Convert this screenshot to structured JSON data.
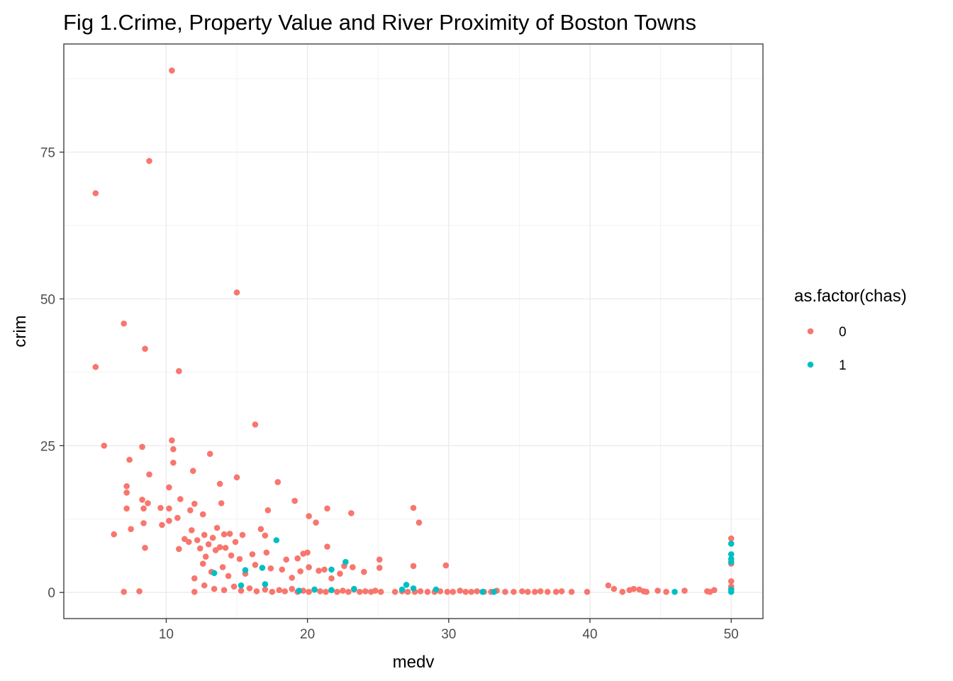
{
  "chart_data": {
    "type": "scatter",
    "title": "Fig 1.Crime, Property Value and River Proximity of Boston Towns",
    "xlabel": "medv",
    "ylabel": "crim",
    "xlim": [
      2.75,
      52.25
    ],
    "ylim": [
      -4.45,
      93.42
    ],
    "x_ticks": [
      10,
      20,
      30,
      40,
      50
    ],
    "y_ticks": [
      0,
      25,
      50,
      75
    ],
    "x_minor": [
      15,
      25,
      35,
      45
    ],
    "y_minor": [
      12.5,
      37.5,
      62.5,
      87.5
    ],
    "grid": true,
    "legend": {
      "title": "as.factor(chas)",
      "position": "right",
      "entries": [
        {
          "label": "0",
          "color": "#F8766D"
        },
        {
          "label": "1",
          "color": "#00BFC4"
        }
      ]
    },
    "series": [
      {
        "name": "0",
        "color": "#F8766D",
        "points": [
          [
            5.0,
            68.0
          ],
          [
            8.8,
            73.5
          ],
          [
            10.4,
            88.9
          ],
          [
            5.0,
            38.4
          ],
          [
            7.0,
            45.8
          ],
          [
            8.5,
            41.5
          ],
          [
            10.9,
            37.7
          ],
          [
            15.0,
            51.1
          ],
          [
            16.3,
            28.6
          ],
          [
            5.6,
            25.0
          ],
          [
            8.3,
            24.8
          ],
          [
            10.4,
            25.9
          ],
          [
            10.5,
            24.4
          ],
          [
            10.5,
            22.1
          ],
          [
            13.1,
            23.6
          ],
          [
            7.4,
            22.6
          ],
          [
            8.8,
            20.1
          ],
          [
            11.9,
            20.7
          ],
          [
            15.0,
            19.6
          ],
          [
            13.8,
            18.5
          ],
          [
            17.9,
            18.8
          ],
          [
            7.2,
            18.1
          ],
          [
            7.2,
            17.0
          ],
          [
            10.2,
            17.9
          ],
          [
            19.1,
            15.6
          ],
          [
            11.0,
            15.9
          ],
          [
            8.3,
            15.8
          ],
          [
            8.7,
            15.2
          ],
          [
            12.0,
            15.1
          ],
          [
            13.9,
            15.2
          ],
          [
            7.2,
            14.3
          ],
          [
            8.4,
            14.3
          ],
          [
            9.6,
            14.4
          ],
          [
            10.2,
            14.3
          ],
          [
            11.7,
            14.0
          ],
          [
            17.2,
            14.0
          ],
          [
            21.4,
            14.3
          ],
          [
            23.1,
            13.5
          ],
          [
            27.5,
            14.4
          ],
          [
            20.1,
            13.0
          ],
          [
            7.5,
            10.8
          ],
          [
            6.3,
            9.9
          ],
          [
            8.4,
            11.8
          ],
          [
            9.7,
            11.5
          ],
          [
            10.2,
            12.2
          ],
          [
            10.8,
            12.7
          ],
          [
            12.6,
            13.3
          ],
          [
            11.3,
            9.1
          ],
          [
            11.8,
            10.6
          ],
          [
            12.7,
            9.8
          ],
          [
            13.3,
            9.3
          ],
          [
            13.6,
            11.0
          ],
          [
            14.1,
            9.9
          ],
          [
            14.5,
            10.0
          ],
          [
            14.9,
            8.6
          ],
          [
            15.4,
            9.8
          ],
          [
            16.7,
            10.8
          ],
          [
            17.0,
            9.7
          ],
          [
            20.6,
            11.9
          ],
          [
            27.9,
            11.9
          ],
          [
            10.9,
            7.4
          ],
          [
            11.6,
            8.6
          ],
          [
            12.2,
            8.9
          ],
          [
            12.4,
            7.5
          ],
          [
            12.8,
            6.1
          ],
          [
            13.0,
            8.2
          ],
          [
            13.5,
            7.2
          ],
          [
            13.8,
            7.7
          ],
          [
            14.2,
            7.6
          ],
          [
            14.6,
            6.3
          ],
          [
            15.2,
            5.7
          ],
          [
            16.1,
            6.5
          ],
          [
            17.1,
            6.8
          ],
          [
            18.5,
            5.6
          ],
          [
            19.3,
            5.8
          ],
          [
            19.7,
            6.6
          ],
          [
            20.0,
            6.8
          ],
          [
            21.4,
            7.8
          ],
          [
            8.5,
            7.6
          ],
          [
            12.0,
            2.4
          ],
          [
            12.6,
            4.9
          ],
          [
            13.2,
            3.5
          ],
          [
            14.0,
            4.3
          ],
          [
            14.4,
            2.8
          ],
          [
            15.6,
            3.2
          ],
          [
            16.3,
            4.7
          ],
          [
            17.4,
            4.1
          ],
          [
            18.2,
            3.9
          ],
          [
            18.9,
            2.5
          ],
          [
            19.5,
            3.6
          ],
          [
            20.1,
            4.3
          ],
          [
            20.8,
            3.7
          ],
          [
            21.2,
            3.9
          ],
          [
            21.7,
            2.4
          ],
          [
            22.3,
            3.2
          ],
          [
            22.6,
            4.5
          ],
          [
            23.2,
            4.3
          ],
          [
            24.0,
            3.5
          ],
          [
            25.1,
            4.2
          ],
          [
            25.1,
            5.6
          ],
          [
            27.5,
            4.5
          ],
          [
            29.8,
            4.6
          ],
          [
            7.0,
            0.1
          ],
          [
            8.1,
            0.2
          ],
          [
            12.0,
            0.1
          ],
          [
            12.7,
            1.2
          ],
          [
            13.4,
            0.6
          ],
          [
            14.1,
            0.4
          ],
          [
            14.8,
            1.0
          ],
          [
            15.3,
            0.3
          ],
          [
            15.9,
            0.7
          ],
          [
            16.4,
            0.2
          ],
          [
            17.0,
            0.5
          ],
          [
            17.5,
            0.1
          ],
          [
            18.0,
            0.4
          ],
          [
            18.4,
            0.2
          ],
          [
            18.9,
            0.6
          ],
          [
            19.3,
            0.1
          ],
          [
            19.7,
            0.3
          ],
          [
            20.1,
            0.1
          ],
          [
            20.5,
            0.5
          ],
          [
            20.9,
            0.2
          ],
          [
            21.3,
            0.1
          ],
          [
            21.7,
            0.4
          ],
          [
            22.1,
            0.1
          ],
          [
            22.5,
            0.3
          ],
          [
            22.9,
            0.1
          ],
          [
            23.3,
            0.5
          ],
          [
            23.7,
            0.1
          ],
          [
            24.1,
            0.2
          ],
          [
            24.5,
            0.1
          ],
          [
            24.8,
            0.3
          ],
          [
            25.2,
            0.1
          ],
          [
            26.2,
            0.1
          ],
          [
            26.7,
            0.2
          ],
          [
            27.1,
            0.1
          ],
          [
            27.6,
            0.1
          ],
          [
            28.0,
            0.2
          ],
          [
            28.5,
            0.1
          ],
          [
            29.0,
            0.1
          ],
          [
            29.4,
            0.2
          ],
          [
            29.9,
            0.1
          ],
          [
            30.3,
            0.1
          ],
          [
            30.8,
            0.3
          ],
          [
            31.2,
            0.1
          ],
          [
            31.6,
            0.1
          ],
          [
            32.0,
            0.2
          ],
          [
            32.5,
            0.1
          ],
          [
            33.0,
            0.1
          ],
          [
            33.4,
            0.3
          ],
          [
            34.0,
            0.1
          ],
          [
            34.6,
            0.1
          ],
          [
            35.2,
            0.2
          ],
          [
            35.6,
            0.1
          ],
          [
            36.1,
            0.1
          ],
          [
            36.5,
            0.2
          ],
          [
            37.0,
            0.1
          ],
          [
            37.6,
            0.1
          ],
          [
            38.0,
            0.2
          ],
          [
            38.7,
            0.1
          ],
          [
            39.8,
            0.1
          ],
          [
            41.3,
            1.2
          ],
          [
            41.7,
            0.6
          ],
          [
            42.3,
            0.1
          ],
          [
            42.8,
            0.4
          ],
          [
            43.1,
            0.6
          ],
          [
            43.5,
            0.5
          ],
          [
            43.8,
            0.2
          ],
          [
            44.0,
            0.1
          ],
          [
            44.8,
            0.3
          ],
          [
            45.4,
            0.1
          ],
          [
            46.7,
            0.3
          ],
          [
            48.3,
            0.2
          ],
          [
            48.5,
            0.1
          ],
          [
            48.8,
            0.4
          ],
          [
            50.0,
            0.6
          ],
          [
            50.0,
            1.0
          ],
          [
            50.0,
            1.9
          ],
          [
            50.0,
            4.9
          ],
          [
            50.0,
            9.2
          ]
        ]
      },
      {
        "name": "1",
        "color": "#00BFC4",
        "points": [
          [
            13.4,
            3.3
          ],
          [
            15.3,
            1.2
          ],
          [
            15.6,
            3.8
          ],
          [
            16.8,
            4.2
          ],
          [
            17.0,
            1.4
          ],
          [
            17.8,
            8.9
          ],
          [
            19.4,
            0.3
          ],
          [
            20.5,
            0.5
          ],
          [
            21.7,
            0.4
          ],
          [
            21.7,
            3.9
          ],
          [
            22.7,
            5.2
          ],
          [
            23.3,
            0.6
          ],
          [
            26.7,
            0.5
          ],
          [
            27.0,
            1.3
          ],
          [
            27.5,
            0.7
          ],
          [
            29.1,
            0.5
          ],
          [
            32.4,
            0.1
          ],
          [
            33.2,
            0.1
          ],
          [
            46.0,
            0.1
          ],
          [
            50.0,
            0.1
          ],
          [
            50.0,
            0.5
          ],
          [
            50.0,
            5.2
          ],
          [
            50.0,
            5.7
          ],
          [
            50.0,
            6.5
          ],
          [
            50.0,
            8.3
          ]
        ]
      }
    ]
  }
}
